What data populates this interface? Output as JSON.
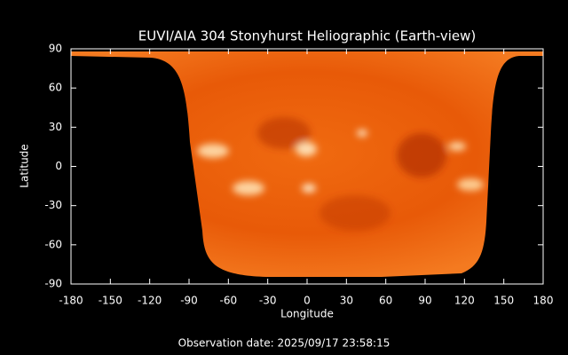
{
  "chart_data": {
    "type": "map",
    "title": "EUVI/AIA 304 Stonyhurst Heliographic (Earth-view)",
    "xlabel": "Longitude",
    "ylabel": "Latitude",
    "xlim": [
      -180,
      180
    ],
    "ylim": [
      -90,
      90
    ],
    "xticks": [
      -180,
      -150,
      -120,
      -90,
      -60,
      -30,
      0,
      30,
      60,
      90,
      120,
      150,
      180
    ],
    "yticks": [
      -90,
      -60,
      -30,
      0,
      30,
      60,
      90
    ],
    "footer": "Observation date: 2025/09/17 23:58:15"
  }
}
